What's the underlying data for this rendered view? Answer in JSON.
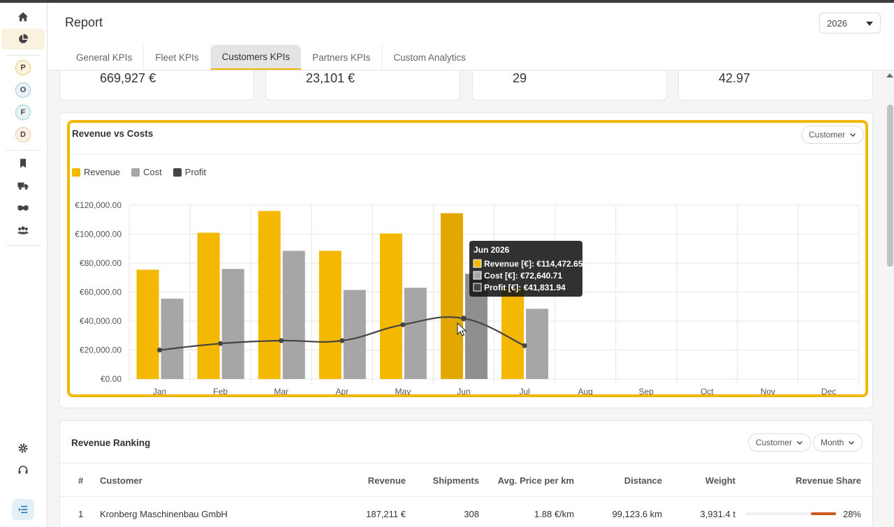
{
  "app": {
    "title": "Report"
  },
  "header": {
    "year": "2026"
  },
  "tabs": [
    {
      "label": "General KPIs"
    },
    {
      "label": "Fleet KPIs"
    },
    {
      "label": "Customers KPIs"
    },
    {
      "label": "Partners KPIs"
    },
    {
      "label": "Custom Analytics"
    }
  ],
  "active_tab": "Customers KPIs",
  "sidebar": {
    "avatars": [
      "P",
      "O",
      "F",
      "D"
    ],
    "icons": [
      "home-icon",
      "pie-chart-icon",
      "bookmark-icon",
      "truck-icon",
      "handshake-icon",
      "users-icon",
      "gear-icon",
      "headset-icon",
      "menu-collapse-icon"
    ]
  },
  "kpis": [
    {
      "value": "669,927 €"
    },
    {
      "value": "23,101 €"
    },
    {
      "value": "29"
    },
    {
      "value": "42.97"
    }
  ],
  "revenue_chart": {
    "title": "Revenue vs Costs",
    "group_by": "Customer",
    "legend": [
      "Revenue",
      "Cost",
      "Profit"
    ]
  },
  "chart_data": {
    "type": "bar",
    "categories": [
      "Jan",
      "Feb",
      "Mar",
      "Apr",
      "May",
      "Jun",
      "Jul",
      "Aug",
      "Sep",
      "Oct",
      "Nov",
      "Dec"
    ],
    "y_ticks": [
      "€0.00",
      "€20,000.00",
      "€40,000.00",
      "€60,000.00",
      "€80,000.00",
      "€100,000.00",
      "€120,000.00"
    ],
    "ylim": [
      0,
      120000
    ],
    "series": [
      {
        "name": "Revenue",
        "type": "bar",
        "color": "#f5b800",
        "values": [
          75500,
          101000,
          116000,
          88500,
          100500,
          114472.65,
          63000,
          null,
          null,
          null,
          null,
          null
        ]
      },
      {
        "name": "Cost",
        "type": "bar",
        "color": "#a6a6a6",
        "values": [
          55500,
          76000,
          88500,
          61500,
          63000,
          72640.71,
          48500,
          null,
          null,
          null,
          null,
          null
        ]
      },
      {
        "name": "Profit",
        "type": "line",
        "color": "#444444",
        "values": [
          20000,
          24500,
          26500,
          26500,
          37500,
          41831.94,
          23000,
          null,
          null,
          null,
          null,
          null
        ]
      }
    ],
    "tooltip": {
      "title": "Jun 2026",
      "rows": [
        {
          "label": "Revenue [€]: €114,472.65",
          "color": "#f5b800"
        },
        {
          "label": "Cost [€]: €72,640.71",
          "color": "#a6a6a6"
        },
        {
          "label": "Profit [€]: €41,831.94",
          "color": "#444444"
        }
      ]
    },
    "grid": true,
    "legend_position": "top-left"
  },
  "ranking": {
    "title": "Revenue Ranking",
    "filters": [
      "Customer",
      "Month"
    ],
    "columns": [
      "#",
      "Customer",
      "Revenue",
      "Shipments",
      "Avg. Price per km",
      "Distance",
      "Weight",
      "Revenue Share"
    ],
    "rows": [
      {
        "rank": "1",
        "customer": "Kronberg Maschinenbau GmbH",
        "revenue": "187,211 €",
        "shipments": "308",
        "avg_price": "1.88 €/km",
        "distance": "99,123.6 km",
        "weight": "3,931.4 t",
        "share": "28%",
        "share_value": 0.28
      }
    ]
  }
}
